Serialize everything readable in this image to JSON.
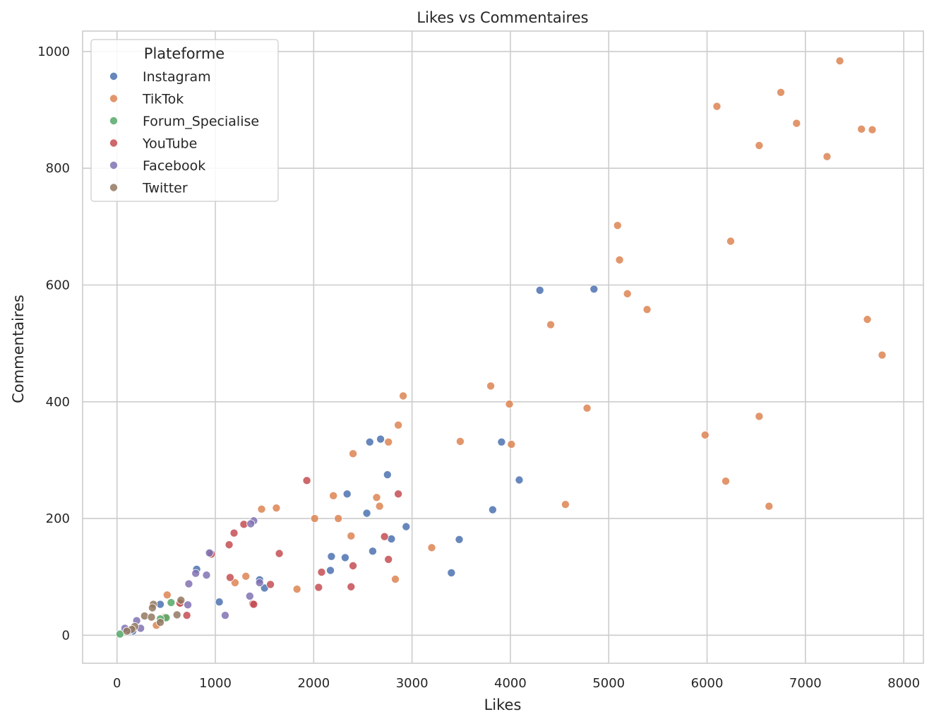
{
  "chart_data": {
    "type": "scatter",
    "title": "Likes vs Commentaires",
    "xlabel": "Likes",
    "ylabel": "Commentaires",
    "xlim": [
      -350,
      8200
    ],
    "ylim": [
      -48,
      1035
    ],
    "xticks": [
      0,
      1000,
      2000,
      3000,
      4000,
      5000,
      6000,
      7000,
      8000
    ],
    "yticks": [
      0,
      200,
      400,
      600,
      800,
      1000
    ],
    "grid": true,
    "legend": {
      "title": "Plateforme",
      "position": "top-left"
    },
    "series": [
      {
        "name": "Instagram",
        "color": "#4c72b0",
        "points": [
          [
            4300,
            591
          ],
          [
            4850,
            593
          ],
          [
            3910,
            331
          ],
          [
            2680,
            336
          ],
          [
            2570,
            331
          ],
          [
            2750,
            275
          ],
          [
            4090,
            266
          ],
          [
            2340,
            242
          ],
          [
            3820,
            215
          ],
          [
            2540,
            209
          ],
          [
            2940,
            186
          ],
          [
            2790,
            165
          ],
          [
            3480,
            164
          ],
          [
            2180,
            135
          ],
          [
            2320,
            133
          ],
          [
            2600,
            144
          ],
          [
            2170,
            111
          ],
          [
            3400,
            107
          ],
          [
            1450,
            95
          ],
          [
            810,
            113
          ],
          [
            950,
            141
          ],
          [
            1500,
            81
          ],
          [
            1040,
            57
          ],
          [
            440,
            53
          ],
          [
            160,
            7
          ],
          [
            120,
            9
          ]
        ]
      },
      {
        "name": "TikTok",
        "color": "#dd8452",
        "points": [
          [
            7350,
            984
          ],
          [
            6750,
            930
          ],
          [
            6100,
            906
          ],
          [
            6910,
            877
          ],
          [
            7570,
            867
          ],
          [
            7680,
            866
          ],
          [
            6530,
            839
          ],
          [
            7220,
            820
          ],
          [
            5090,
            702
          ],
          [
            6240,
            675
          ],
          [
            5110,
            643
          ],
          [
            5190,
            585
          ],
          [
            5390,
            558
          ],
          [
            4410,
            532
          ],
          [
            7630,
            541
          ],
          [
            7780,
            480
          ],
          [
            2910,
            410
          ],
          [
            3800,
            427
          ],
          [
            3990,
            396
          ],
          [
            4780,
            389
          ],
          [
            2860,
            360
          ],
          [
            6530,
            375
          ],
          [
            5980,
            343
          ],
          [
            3490,
            332
          ],
          [
            2760,
            331
          ],
          [
            4010,
            327
          ],
          [
            2400,
            311
          ],
          [
            6190,
            264
          ],
          [
            2200,
            239
          ],
          [
            2640,
            236
          ],
          [
            2670,
            221
          ],
          [
            6630,
            221
          ],
          [
            4560,
            224
          ],
          [
            1470,
            216
          ],
          [
            1620,
            218
          ],
          [
            2010,
            200
          ],
          [
            2250,
            200
          ],
          [
            2380,
            170
          ],
          [
            3200,
            150
          ],
          [
            1310,
            101
          ],
          [
            1200,
            90
          ],
          [
            1830,
            79
          ],
          [
            2830,
            96
          ],
          [
            510,
            69
          ],
          [
            650,
            55
          ],
          [
            490,
            31
          ],
          [
            400,
            17
          ]
        ]
      },
      {
        "name": "Forum_Specialise",
        "color": "#55a868",
        "points": [
          [
            550,
            56
          ],
          [
            500,
            30
          ],
          [
            440,
            28
          ],
          [
            30,
            2
          ]
        ]
      },
      {
        "name": "YouTube",
        "color": "#c44e52",
        "points": [
          [
            1930,
            265
          ],
          [
            2860,
            242
          ],
          [
            1290,
            190
          ],
          [
            1190,
            175
          ],
          [
            2720,
            169
          ],
          [
            1140,
            155
          ],
          [
            1650,
            140
          ],
          [
            960,
            139
          ],
          [
            2760,
            130
          ],
          [
            2400,
            119
          ],
          [
            2080,
            108
          ],
          [
            1150,
            99
          ],
          [
            1560,
            87
          ],
          [
            2380,
            83
          ],
          [
            2050,
            82
          ],
          [
            1380,
            54
          ],
          [
            1390,
            53
          ],
          [
            640,
            55
          ],
          [
            710,
            34
          ]
        ]
      },
      {
        "name": "Facebook",
        "color": "#8172b3",
        "points": [
          [
            1390,
            196
          ],
          [
            1360,
            191
          ],
          [
            940,
            141
          ],
          [
            800,
            106
          ],
          [
            910,
            103
          ],
          [
            1450,
            90
          ],
          [
            730,
            88
          ],
          [
            1350,
            67
          ],
          [
            720,
            52
          ],
          [
            1100,
            34
          ],
          [
            200,
            25
          ],
          [
            240,
            12
          ],
          [
            130,
            8
          ],
          [
            80,
            12
          ]
        ]
      },
      {
        "name": "Twitter",
        "color": "#937860",
        "points": [
          [
            370,
            53
          ],
          [
            360,
            47
          ],
          [
            650,
            60
          ],
          [
            610,
            35
          ],
          [
            280,
            33
          ],
          [
            350,
            31
          ],
          [
            440,
            22
          ],
          [
            180,
            15
          ],
          [
            150,
            10
          ],
          [
            100,
            7
          ]
        ]
      }
    ]
  }
}
